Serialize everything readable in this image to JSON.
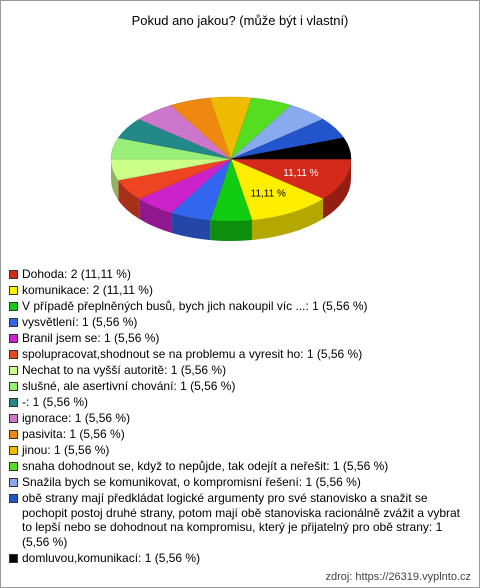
{
  "chart_data": {
    "type": "pie3d",
    "title": "Pokud ano jakou? (může být i vlastní)",
    "categories": [
      "Dohoda: 2 (11,11 %)",
      "komunikace: 2 (11,11 %)",
      "V případě přeplněných busů, bych jich nakoupil víc ...: 1 (5,56 %)",
      "vysvětlení: 1 (5,56 %)",
      "Branil jsem se: 1 (5,56 %)",
      "spolupracovat,shodnout se na problemu a vyresit ho: 1 (5,56 %)",
      "Nechat to na vyšší autoritě: 1 (5,56 %)",
      "slušné, ale asertivní chování: 1 (5,56 %)",
      "-: 1 (5,56 %)",
      "ignorace: 1 (5,56 %)",
      "pasivita: 1 (5,56 %)",
      "jinou: 1 (5,56 %)",
      "snaha dohodnout se, když to nepůjde, tak odejít a neřešit: 1 (5,56 %)",
      "Snažila bych se komunikovat, o kompromisní řešení: 1 (5,56 %)",
      "obě strany mají předkládat logické argumenty pro své stanovisko a snažit se pochopit postoj druhé strany, potom mají obě stanoviska racionálně zvážit a vybrat to lepší nebo se dohodnout na kompromisu, který je přijatelný pro obě strany: 1 (5,56 %)",
      "domluvou,komunikací: 1 (5,56 %)"
    ],
    "values": [
      11.11,
      11.11,
      5.56,
      5.56,
      5.56,
      5.56,
      5.56,
      5.56,
      5.56,
      5.56,
      5.56,
      5.56,
      5.56,
      5.56,
      5.56,
      5.56
    ],
    "value_labels": [
      "11,11 %",
      "11,11 %",
      null,
      null,
      null,
      null,
      null,
      null,
      null,
      null,
      null,
      null,
      null,
      null,
      null,
      null
    ],
    "colors": [
      "#d42a1c",
      "#ffee00",
      "#11cc11",
      "#3366ee",
      "#cc22cc",
      "#ee4422",
      "#ccff88",
      "#99ee77",
      "#228888",
      "#cc77cc",
      "#ee8811",
      "#eebb00",
      "#55dd22",
      "#88aaee",
      "#2255cc",
      "#000000"
    ],
    "source": "zdroj: https://26319.vyplnto.cz"
  }
}
